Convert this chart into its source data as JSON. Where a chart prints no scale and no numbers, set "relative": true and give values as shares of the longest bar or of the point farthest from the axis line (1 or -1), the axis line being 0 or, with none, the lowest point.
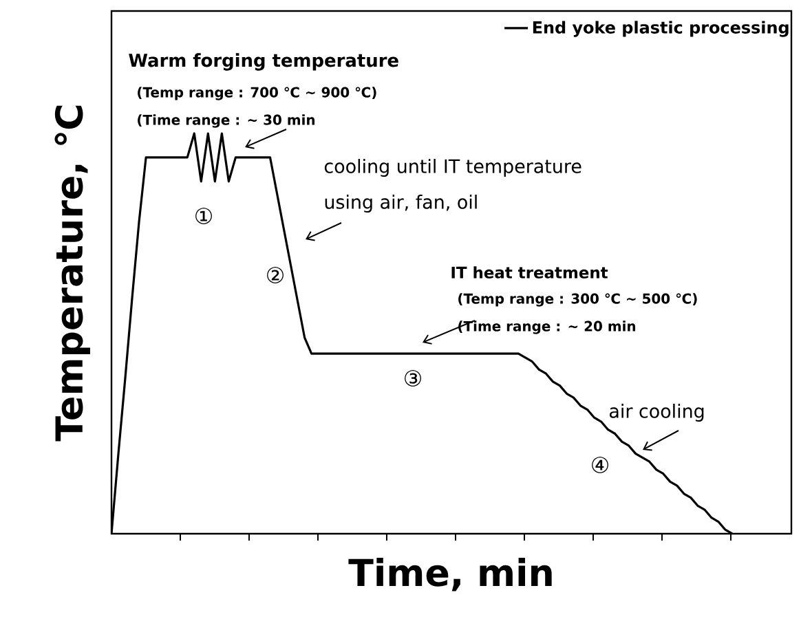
{
  "chart_data": {
    "type": "line",
    "relative": true,
    "xlabel": "Time, min",
    "ylabel": "Temperature, ℃",
    "categories": [
      null,
      null,
      null,
      null,
      null,
      null,
      null,
      null,
      null,
      null,
      null,
      null,
      null,
      null,
      null,
      null,
      null,
      null,
      null,
      null,
      null,
      null,
      null,
      null,
      null,
      null,
      null,
      null,
      null,
      null,
      null,
      null,
      null,
      null,
      null,
      null,
      null,
      null,
      null,
      null,
      null,
      null,
      null,
      null,
      null,
      null,
      null,
      null,
      null,
      null,
      null,
      null,
      null,
      null,
      null,
      null,
      null,
      null,
      null,
      null,
      null,
      null,
      null,
      null,
      null,
      null,
      null,
      null,
      null,
      null,
      null,
      null,
      null,
      null,
      null,
      null,
      null,
      null,
      null,
      null,
      null,
      null,
      null,
      null,
      null,
      null,
      null,
      null,
      null,
      null,
      null
    ],
    "series": [
      {
        "name": "End yoke plastic processing",
        "color": "#000000",
        "values": [
          0,
          0.2,
          0.39,
          0.59,
          0.78,
          0.94,
          0.94,
          0.94,
          0.94,
          0.94,
          0.94,
          0.94,
          1,
          0.88,
          1,
          0.88,
          1,
          0.88,
          0.94,
          0.94,
          0.94,
          0.94,
          0.94,
          0.94,
          0.85,
          0.76,
          0.67,
          0.58,
          0.49,
          0.45,
          0.45,
          0.45,
          0.45,
          0.45,
          0.45,
          0.45,
          0.45,
          0.45,
          0.45,
          0.45,
          0.45,
          0.45,
          0.45,
          0.45,
          0.45,
          0.45,
          0.45,
          0.45,
          0.45,
          0.45,
          0.45,
          0.45,
          0.45,
          0.45,
          0.45,
          0.45,
          0.45,
          0.45,
          0.45,
          0.45,
          0.44,
          0.43,
          0.41,
          0.4,
          0.38,
          0.37,
          0.35,
          0.34,
          0.32,
          0.31,
          0.29,
          0.28,
          0.26,
          0.25,
          0.23,
          0.22,
          0.2,
          0.19,
          0.18,
          0.16,
          0.15,
          0.13,
          0.12,
          0.1,
          0.09,
          0.07,
          0.06,
          0.04,
          0.03,
          0.01,
          0
        ]
      }
    ],
    "legend": "top right",
    "marker": "none",
    "line_style": "solid",
    "grid": false,
    "annotations": [
      "Warm forging temperature",
      "(Temp range : 700 ℃ ~ 900 ℃)",
      "(Time range : ~ 30 min",
      "cooling until IT temperature",
      "using air, fan, oil",
      "IT heat treatment",
      "(Temp range : 300 ℃ ~ 500 ℃)",
      "(Time range : ~ 20 min",
      "air cooling",
      "①",
      "②",
      "③",
      "④"
    ]
  }
}
